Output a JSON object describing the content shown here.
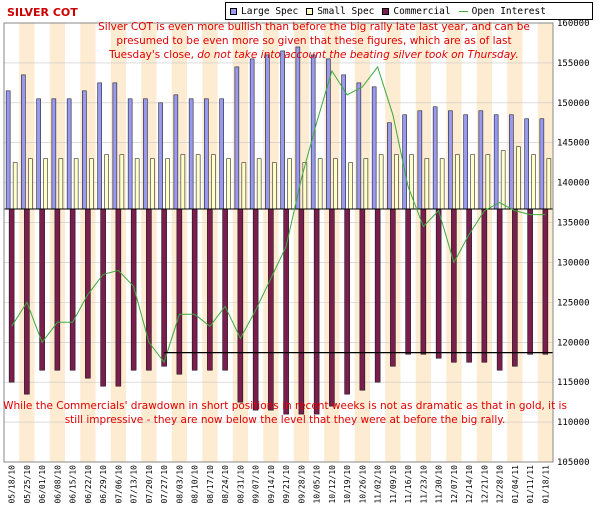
{
  "title": "SILVER COT",
  "legend": [
    {
      "name": "Large Spec",
      "color": "#9999ee",
      "kind": "box"
    },
    {
      "name": "Small Spec",
      "color": "#ffffcc",
      "kind": "box"
    },
    {
      "name": "Commercial",
      "color": "#7a1e4e",
      "kind": "box"
    },
    {
      "name": "Open Interest",
      "color": "#3caa3c",
      "kind": "line"
    }
  ],
  "annotation_top": {
    "text": "Silver COT is even more bullish than before the big rally late last year, and can be presumed to be even more so given that these figures, which are as of last Tuesday's close,",
    "emphasis": "do not take into account the beating silver took on Thursday."
  },
  "annotation_bottom": "While the Commercials' drawdown in short positions in recent weeks is not as dramatic as that in gold, it is still impressive - they are now below the level that they were at before the big rally.",
  "colors": {
    "large_spec": "#9999ee",
    "small_spec": "#ffffcc",
    "commercial": "#7a1e4e",
    "open_interest": "#3caa3c",
    "band": "#fdebd2",
    "reference_line": "#000000",
    "grid": "#c8c8c8",
    "text_red": "#e00000"
  },
  "chart_data": {
    "type": "bar",
    "right_axis": {
      "label": "",
      "min": 105000,
      "max": 160000,
      "step": 5000,
      "ticks": [
        "105000",
        "110000",
        "115000",
        "120000",
        "125000",
        "130000",
        "135000",
        "140000",
        "145000",
        "150000",
        "155000",
        "160000"
      ]
    },
    "grid": true,
    "legend_position": "top-right",
    "categories": [
      "05/18/10",
      "05/25/10",
      "06/01/10",
      "06/08/10",
      "06/15/10",
      "06/22/10",
      "06/29/10",
      "07/06/10",
      "07/13/10",
      "07/20/10",
      "07/27/10",
      "08/03/10",
      "08/10/10",
      "08/17/10",
      "08/24/10",
      "08/31/10",
      "09/07/10",
      "09/14/10",
      "09/21/10",
      "09/28/10",
      "10/05/10",
      "10/12/10",
      "10/19/10",
      "10/26/10",
      "11/02/10",
      "11/09/10",
      "11/16/10",
      "11/23/10",
      "11/30/10",
      "12/07/10",
      "12/14/10",
      "12/21/10",
      "12/28/10",
      "01/04/11",
      "01/11/11",
      "01/18/11"
    ],
    "x_tick_labels": [
      "05/18/10",
      "05/25/10",
      "06/01/10",
      "06/08/10",
      "06/15/10",
      "06/22/10",
      "06/29/10",
      "07/06/10",
      "07/13/10",
      "07/20/10",
      "07/27/10",
      "08/03/10",
      "08/10/10",
      "08/17/10",
      "08/24/10",
      "08/31/10",
      "09/07/10",
      "09/14/10",
      "09/21/10",
      "09/28/10",
      "10/05/10",
      "10/12/10",
      "10/19/10",
      "10/26/10",
      "11/02/10",
      "11/09/10",
      "11/16/10",
      "11/23/10",
      "11/30/10",
      "12/07/10",
      "12/14/10",
      "12/21/10",
      "12/28/10",
      "01/04/11",
      "01/11/11",
      "01/18/11"
    ],
    "series": [
      {
        "name": "Large Spec",
        "values": [
          151500,
          153500,
          150500,
          150500,
          150500,
          151500,
          152500,
          152500,
          150500,
          150500,
          150000,
          151000,
          150500,
          150500,
          150500,
          154500,
          155500,
          156000,
          156500,
          157000,
          156000,
          155500,
          153500,
          152500,
          152000,
          147500,
          148500,
          149000,
          149500,
          149000,
          148500,
          149000,
          148500,
          148500,
          148000,
          148000
        ]
      },
      {
        "name": "Small Spec",
        "values": [
          142500,
          143000,
          143000,
          143000,
          143000,
          143000,
          143500,
          143500,
          143000,
          143000,
          143000,
          143500,
          143500,
          143500,
          143000,
          142500,
          143000,
          142500,
          143000,
          142500,
          143000,
          143000,
          142500,
          143000,
          143500,
          143500,
          143500,
          143000,
          143000,
          143500,
          143500,
          143500,
          144000,
          144500,
          143500,
          143000
        ]
      },
      {
        "name": "Commercial",
        "values": [
          115000,
          113500,
          116500,
          116500,
          116500,
          115500,
          114500,
          114500,
          116500,
          116500,
          117000,
          116000,
          116500,
          116500,
          116500,
          112500,
          111500,
          111500,
          111000,
          111000,
          111000,
          112000,
          113500,
          114000,
          115000,
          117000,
          118500,
          118500,
          118000,
          117500,
          117500,
          117500,
          116500,
          117000,
          118500,
          118500
        ]
      },
      {
        "name": "Open Interest",
        "values": [
          122000,
          125000,
          120000,
          122500,
          122500,
          126000,
          128500,
          129000,
          127000,
          120000,
          117500,
          123500,
          123500,
          122000,
          124500,
          120500,
          124000,
          128000,
          132000,
          140500,
          147500,
          154000,
          151000,
          152000,
          154500,
          148500,
          139500,
          134500,
          136500,
          130000,
          133500,
          136500,
          137500,
          136500,
          136000,
          136000
        ]
      }
    ],
    "baseline": 136700,
    "reference_line": 118700
  }
}
